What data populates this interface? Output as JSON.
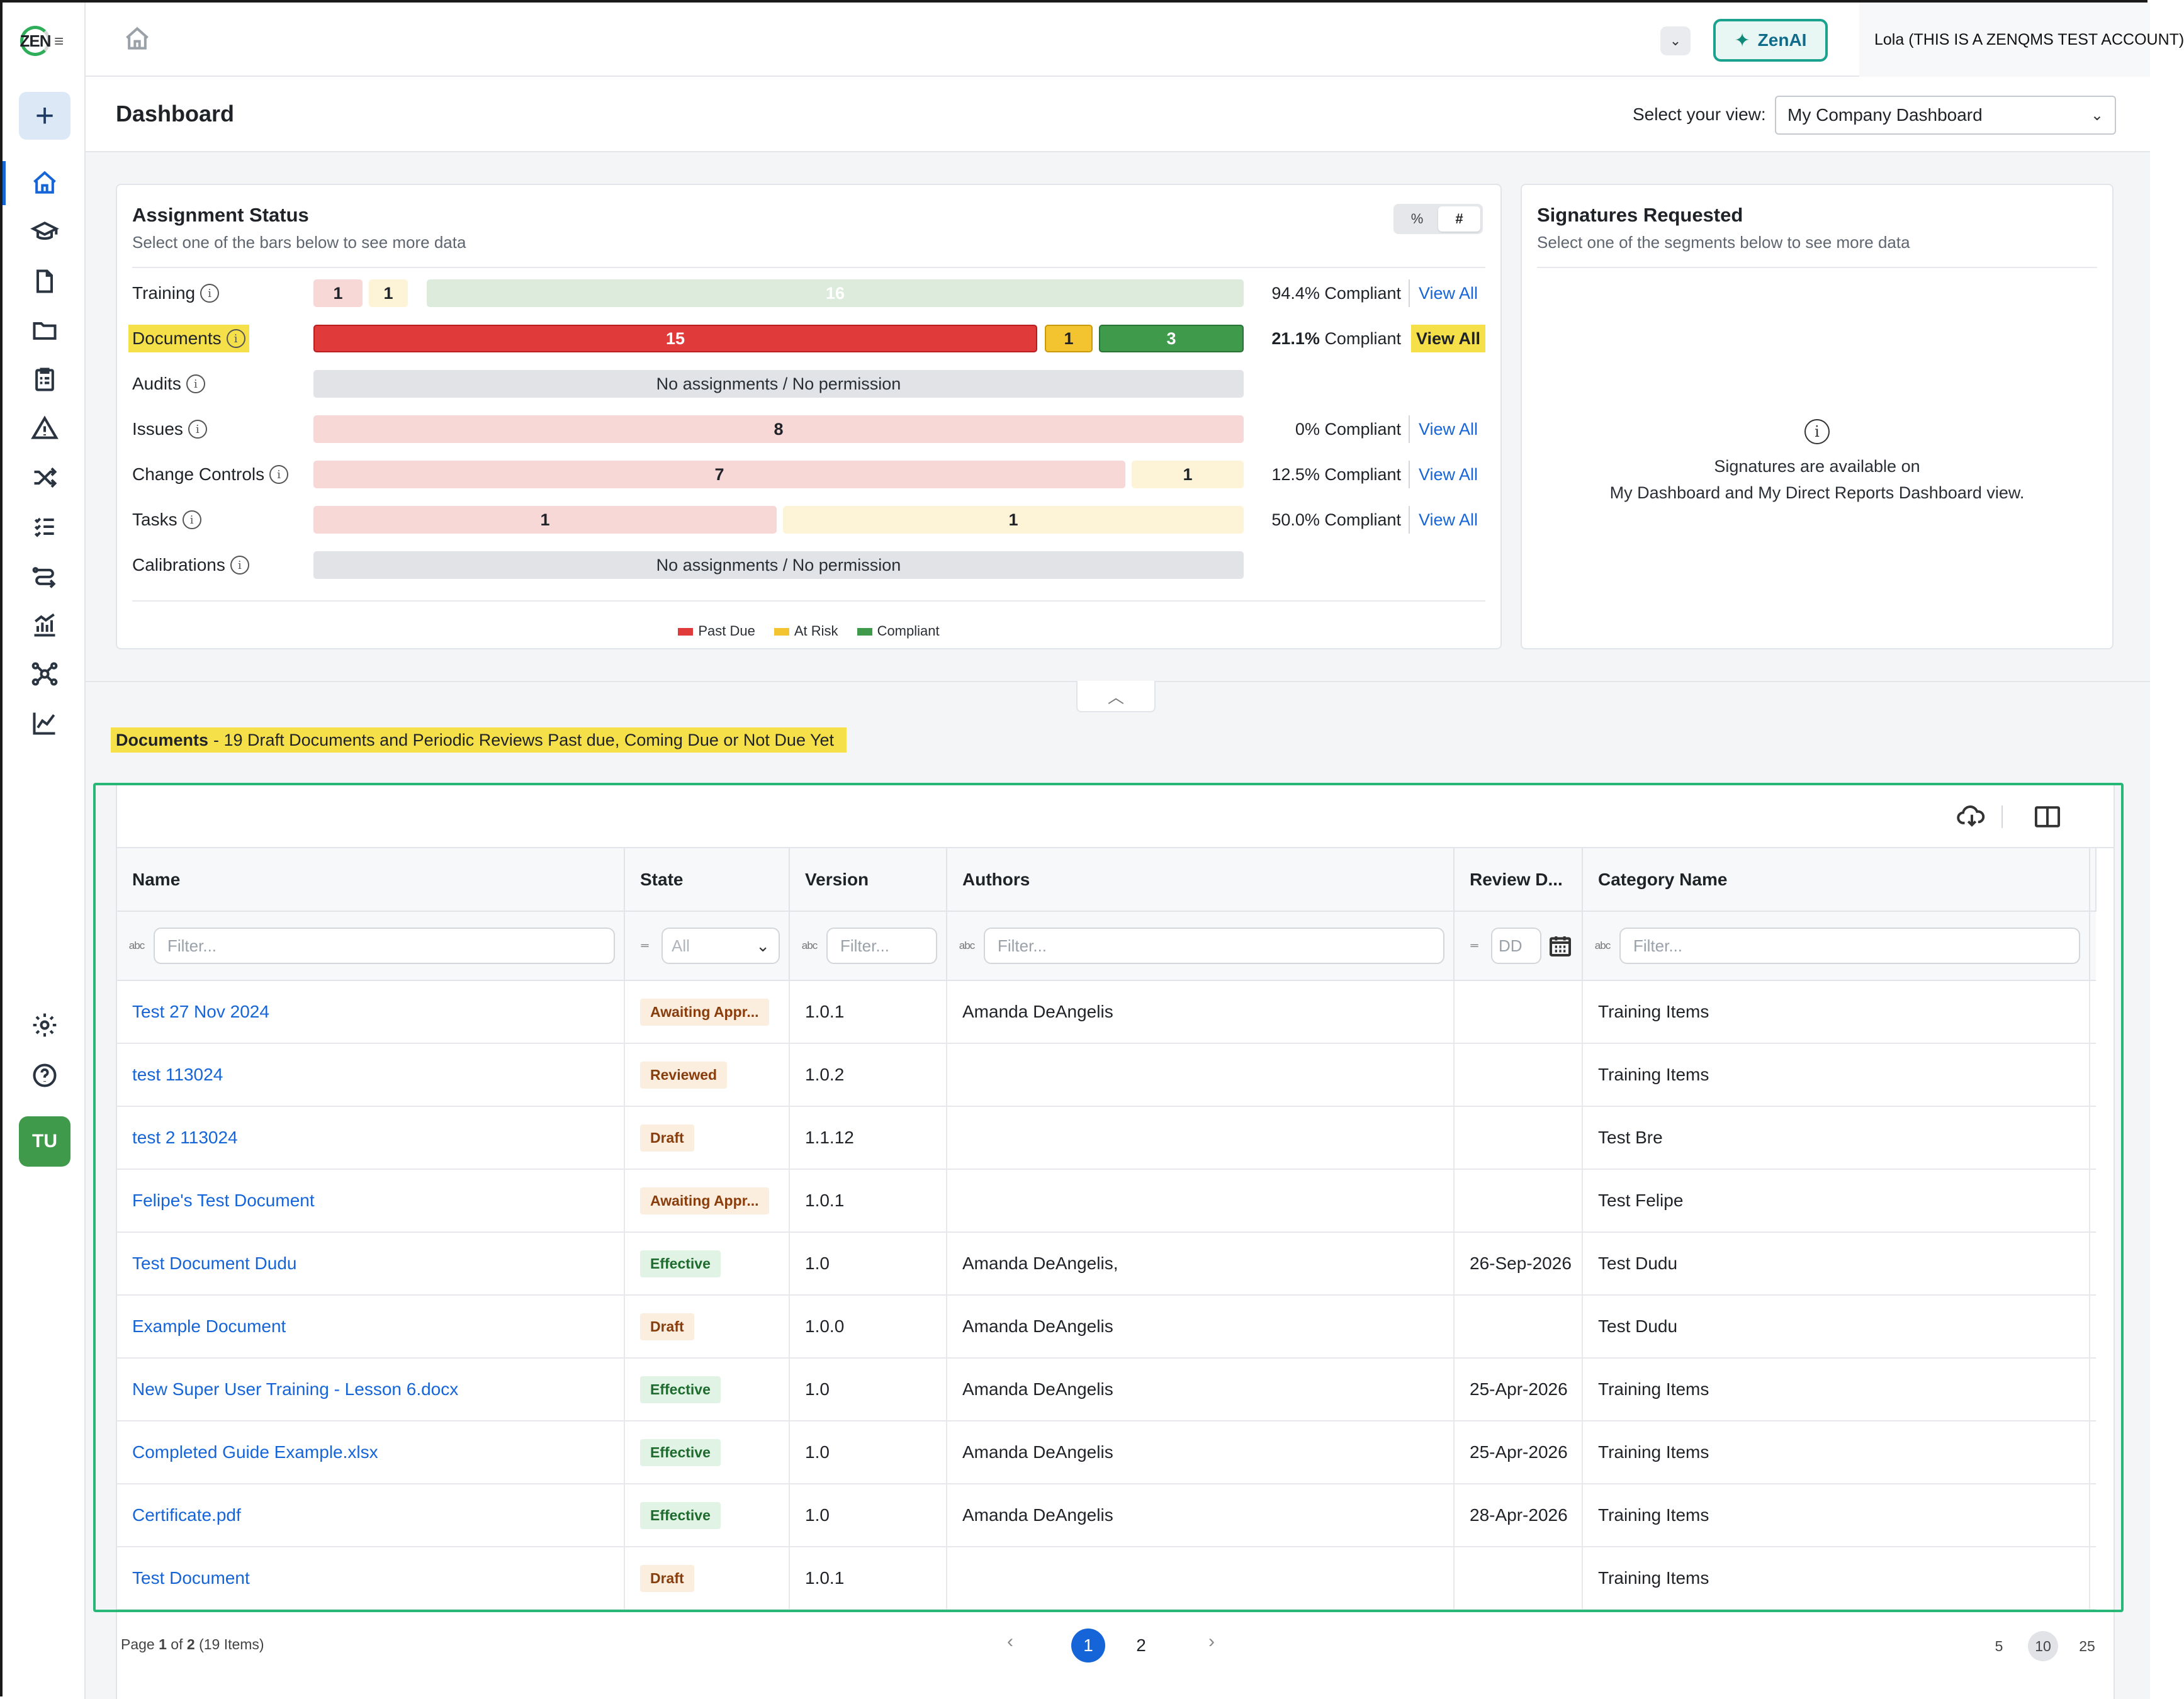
{
  "app": {
    "logo_text": "ZEN",
    "ai_button_label": "ZenAI",
    "account_label": "Lola (THIS IS A ZENQMS TEST ACCOUNT)",
    "user_initials": "TU",
    "accent_color": "#1565d8",
    "brand_green": "#3f9a4b"
  },
  "sidebar": {
    "items": [
      {
        "icon": "home-icon",
        "active": true
      },
      {
        "icon": "graduation-cap-icon"
      },
      {
        "icon": "document-icon"
      },
      {
        "icon": "folder-icon"
      },
      {
        "icon": "clipboard-checklist-icon"
      },
      {
        "icon": "warning-triangle-icon"
      },
      {
        "icon": "shuffle-icon"
      },
      {
        "icon": "task-list-icon"
      },
      {
        "icon": "workflow-icon"
      },
      {
        "icon": "bar-chart-icon"
      },
      {
        "icon": "network-icon"
      },
      {
        "icon": "line-chart-icon"
      },
      {
        "icon": "gear-icon"
      },
      {
        "icon": "help-icon"
      }
    ]
  },
  "header": {
    "title": "Dashboard",
    "view_label": "Select your view:",
    "view_selected": "My Company Dashboard"
  },
  "assignment_status": {
    "title": "Assignment Status",
    "subtitle": "Select one of the bars below to see more data",
    "toggle": {
      "percent": "%",
      "count": "#",
      "selected": "#"
    },
    "rows": [
      {
        "label": "Training",
        "past_due": "1",
        "at_risk": "1",
        "compliant": "16",
        "pct": "94.4% Compliant",
        "view_all": "View All"
      },
      {
        "label": "Documents",
        "past_due": "15",
        "at_risk": "1",
        "compliant": "3",
        "pct_value": "21.1%",
        "pct_text": "Compliant",
        "view_all": "View All"
      },
      {
        "label": "Audits",
        "none_text": "No assignments / No permission"
      },
      {
        "label": "Issues",
        "past_due": "8",
        "pct": "0% Compliant",
        "view_all": "View All"
      },
      {
        "label": "Change Controls",
        "past_due": "7",
        "at_risk": "1",
        "pct": "12.5% Compliant",
        "view_all": "View All"
      },
      {
        "label": "Tasks",
        "past_due": "1",
        "at_risk": "1",
        "pct": "50.0% Compliant",
        "view_all": "View All"
      },
      {
        "label": "Calibrations",
        "none_text": "No assignments / No permission"
      }
    ],
    "legend": [
      {
        "label": "Past Due",
        "color": "#e03a3a"
      },
      {
        "label": "At Risk",
        "color": "#f4c430"
      },
      {
        "label": "Compliant",
        "color": "#3f9a4b"
      }
    ]
  },
  "signatures": {
    "title": "Signatures Requested",
    "subtitle": "Select one of the segments below to see more data",
    "message_line1": "Signatures are available on",
    "message_line2": "My Dashboard and My Direct Reports Dashboard view."
  },
  "section": {
    "heading_bold": "Documents",
    "heading_rest": "- 19 Draft Documents and Periodic Reviews Past due, Coming Due or Not Due Yet"
  },
  "grid": {
    "columns": [
      "Name",
      "State",
      "Version",
      "Authors",
      "Review D...",
      "Category Name"
    ],
    "filter_placeholder": "Filter...",
    "state_filter_value": "All",
    "date_filter_value": "DD",
    "rows": [
      {
        "name": "Test 27 Nov 2024",
        "state": "Awaiting Appr...",
        "state_kind": "awaiting",
        "version": "1.0.1",
        "authors": "Amanda DeAngelis",
        "review_date": "",
        "category": "Training Items"
      },
      {
        "name": "test 113024",
        "state": "Reviewed",
        "state_kind": "reviewed",
        "version": "1.0.2",
        "authors": "",
        "review_date": "",
        "category": "Training Items"
      },
      {
        "name": "test 2 113024",
        "state": "Draft",
        "state_kind": "draft",
        "version": "1.1.12",
        "authors": "",
        "review_date": "",
        "category": "Test Bre"
      },
      {
        "name": "Felipe's Test Document",
        "state": "Awaiting Appr...",
        "state_kind": "awaiting",
        "version": "1.0.1",
        "authors": "",
        "review_date": "",
        "category": "Test Felipe"
      },
      {
        "name": "Test Document Dudu",
        "state": "Effective",
        "state_kind": "effective",
        "version": "1.0",
        "authors": "Amanda DeAngelis,",
        "review_date": "26-Sep-2026",
        "category": "Test Dudu"
      },
      {
        "name": "Example Document",
        "state": "Draft",
        "state_kind": "draft",
        "version": "1.0.0",
        "authors": "Amanda DeAngelis",
        "review_date": "",
        "category": "Test Dudu"
      },
      {
        "name": "New Super User Training - Lesson 6.docx",
        "state": "Effective",
        "state_kind": "effective",
        "version": "1.0",
        "authors": "Amanda DeAngelis",
        "review_date": "25-Apr-2026",
        "category": "Training Items"
      },
      {
        "name": "Completed Guide Example.xlsx",
        "state": "Effective",
        "state_kind": "effective",
        "version": "1.0",
        "authors": "Amanda DeAngelis",
        "review_date": "25-Apr-2026",
        "category": "Training Items"
      },
      {
        "name": "Certificate.pdf",
        "state": "Effective",
        "state_kind": "effective",
        "version": "1.0",
        "authors": "Amanda DeAngelis",
        "review_date": "28-Apr-2026",
        "category": "Training Items"
      },
      {
        "name": "Test Document",
        "state": "Draft",
        "state_kind": "draft",
        "version": "1.0.1",
        "authors": "",
        "review_date": "",
        "category": "Training Items"
      }
    ]
  },
  "pager": {
    "page_prefix": "Page",
    "current_page": "1",
    "of_text": "of",
    "total_pages": "2",
    "items_text": "(19 Items)",
    "pages": [
      "1",
      "2"
    ],
    "prev_glyph": "‹",
    "next_glyph": "›",
    "sizes": [
      "5",
      "10",
      "25"
    ],
    "selected_size": "10"
  }
}
